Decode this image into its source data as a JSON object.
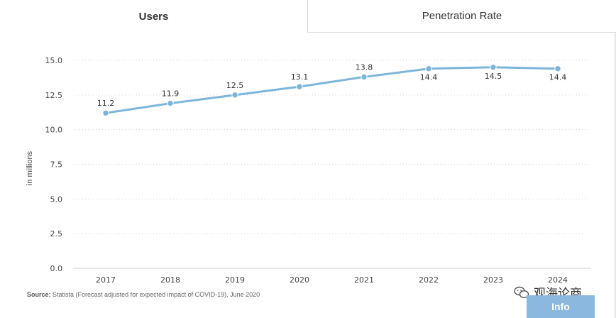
{
  "tabs": {
    "users_label": "Users",
    "penetration_label": "Penetration Rate"
  },
  "chart_data": {
    "type": "line",
    "x": [
      "2017",
      "2018",
      "2019",
      "2020",
      "2021",
      "2022",
      "2023",
      "2024"
    ],
    "series": [
      {
        "values": [
          11.2,
          11.9,
          12.5,
          13.1,
          13.8,
          14.4,
          14.5,
          14.4
        ]
      }
    ],
    "data_labels": [
      "11.2",
      "11.9",
      "12.5",
      "13.1",
      "13.8",
      "14.4",
      "14.5",
      "14.4"
    ],
    "y_ticks": [
      "0.0",
      "2.5",
      "5.0",
      "7.5",
      "10.0",
      "12.5",
      "15.0"
    ],
    "ylim": [
      0,
      15
    ],
    "ylabel": "in millions",
    "xlabel": "",
    "title": "",
    "grid": "horizontal-dotted",
    "line_color": "#7cb5db"
  },
  "source": {
    "label": "Source:",
    "text": "Statista (Forecast adjusted for expected impact of COVID-19), June 2020"
  },
  "watermark": {
    "text": "观海论商",
    "icon": "wechat-icon"
  },
  "info_button": {
    "label": "Info"
  }
}
